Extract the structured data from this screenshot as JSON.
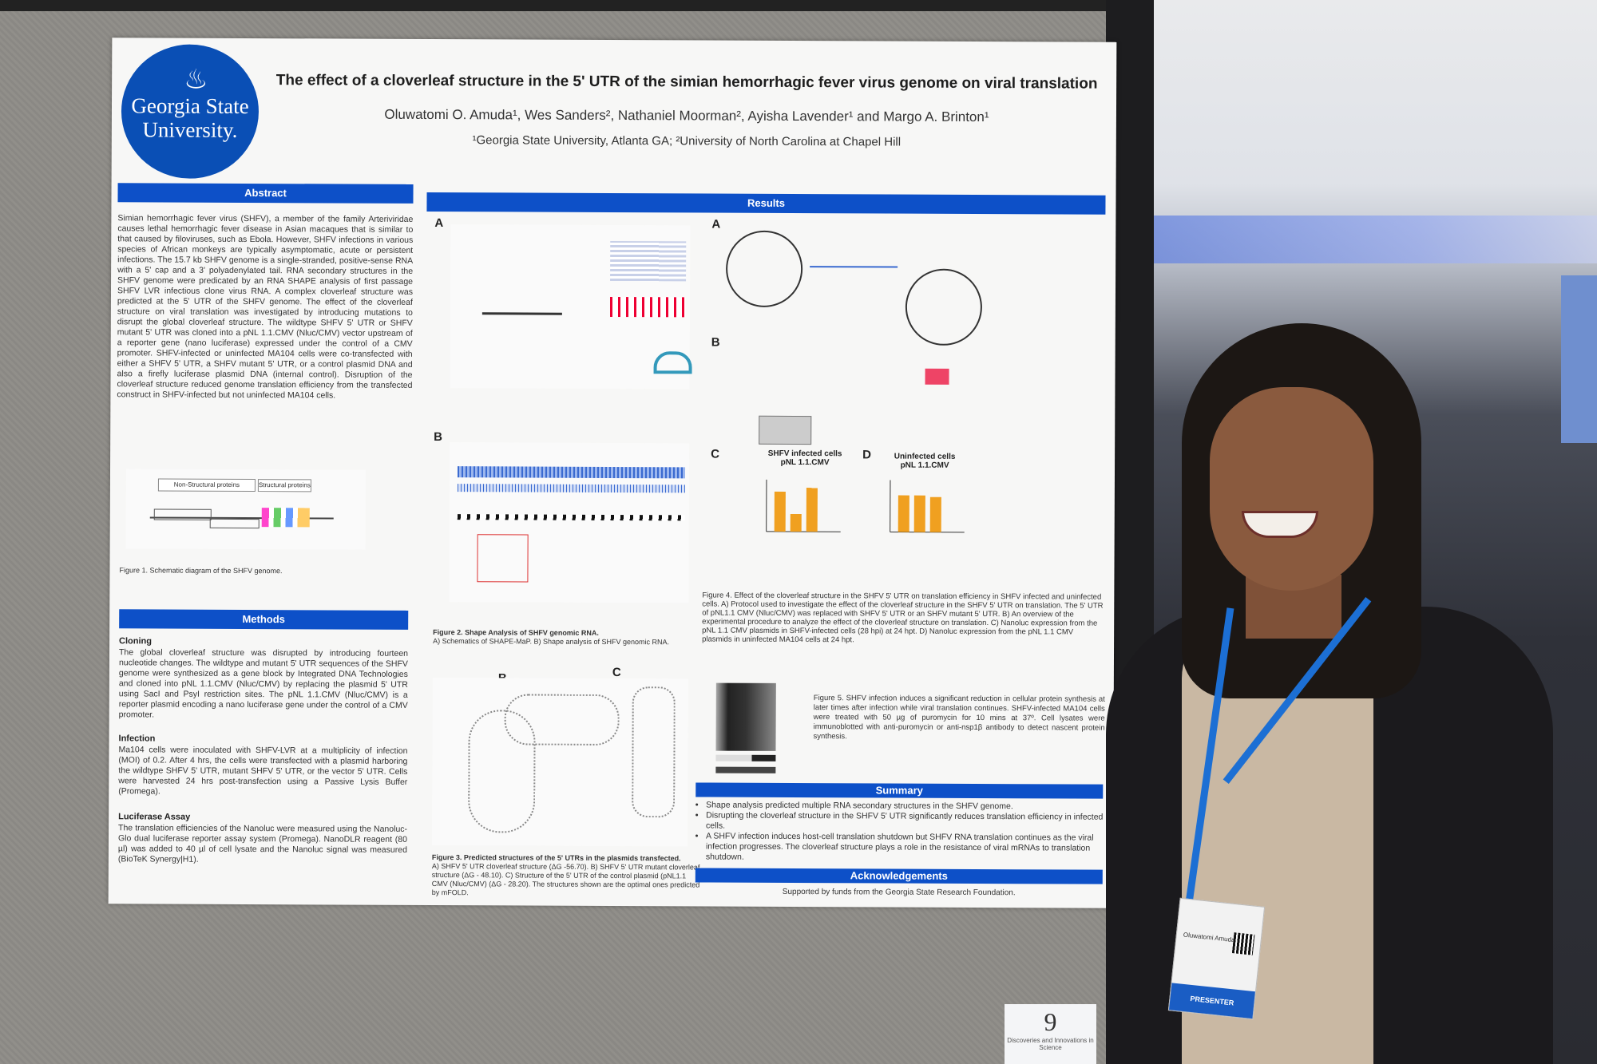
{
  "poster": {
    "logo": {
      "line1": "Georgia State",
      "line2": "University.",
      "icon": "flame-icon"
    },
    "title": "The effect of a cloverleaf structure in the 5' UTR of the simian hemorrhagic fever virus genome on viral translation",
    "authors": "Oluwatomi O. Amuda¹, Wes Sanders², Nathaniel Moorman², Ayisha Lavender¹ and Margo A. Brinton¹",
    "affiliations": "¹Georgia State University, Atlanta GA; ²University of North Carolina at Chapel Hill",
    "abstract": {
      "heading": "Abstract",
      "text": "Simian hemorrhagic fever virus (SHFV), a member of the family Arteriviridae causes lethal hemorrhagic fever disease in Asian macaques that is similar to that caused by filoviruses, such as Ebola. However, SHFV infections in various species of African monkeys are typically asymptomatic, acute or persistent infections. The 15.7 kb SHFV genome is a single-stranded, positive-sense RNA with a 5' cap and a 3' polyadenylated tail. RNA secondary structures in the SHFV genome were predicated by an RNA SHAPE analysis of first passage SHFV LVR infectious clone virus RNA. A complex cloverleaf structure was predicted at the 5' UTR of the SHFV genome. The effect of the cloverleaf structure on viral translation was investigated by introducing mutations to disrupt the global cloverleaf structure. The wildtype SHFV 5' UTR or SHFV mutant 5' UTR was cloned into a pNL 1.1.CMV (Nluc/CMV) vector upstream of a reporter gene (nano luciferase) expressed under the control of a CMV promoter. SHFV-infected or uninfected MA104 cells were co-transfected with either a SHFV 5' UTR, a SHFV mutant 5' UTR, or a control plasmid DNA and also a firefly luciferase plasmid DNA (internal control). Disruption of the cloverleaf structure reduced genome translation efficiency from the transfected construct in SHFV-infected but not uninfected MA104 cells."
    },
    "figure1": {
      "nonstructural": "Non-Structural proteins",
      "structural": "Structural proteins",
      "caption": "Figure 1. Schematic diagram of the SHFV genome."
    },
    "methods": {
      "heading": "Methods",
      "cloning_title": "Cloning",
      "cloning_text": "The global cloverleaf structure was disrupted by introducing fourteen nucleotide changes. The wildtype and mutant 5' UTR sequences of the SHFV genome were synthesized as a gene block by Integrated DNA Technologies and cloned into pNL 1.1.CMV (Nluc/CMV) by replacing the plasmid 5' UTR using SacI and PsyI restriction sites. The pNL 1.1.CMV (Nluc/CMV) is a reporter plasmid encoding a nano luciferase gene under the control of a CMV promoter.",
      "infection_title": "Infection",
      "infection_text": "Ma104 cells were inoculated with SHFV-LVR at a multiplicity of infection (MOI) of 0.2. After 4 hrs, the cells were transfected with a plasmid harboring the wildtype SHFV 5' UTR, mutant SHFV 5' UTR, or the vector 5' UTR. Cells were harvested 24 hrs post-transfection using a Passive Lysis Buffer (Promega).",
      "luciferase_title": "Luciferase Assay",
      "luciferase_text": "The translation efficiencies of the Nanoluc were measured using the Nanoluc-Glo dual luciferase reporter assay system (Promega). NanoDLR reagent (80 µl) was added to 40 µl of cell lysate and the Nanoluc signal was measured (BioTeK Synergy|H1)."
    },
    "results": {
      "heading": "Results",
      "figure2_caption_title": "Figure 2. Shape Analysis of SHFV genomic RNA.",
      "figure2_caption": "A) Schematics of SHAPE-MaP. B) Shape analysis of SHFV genomic RNA.",
      "figure3_caption_title": "Figure 3. Predicted structures of the 5' UTRs in the plasmids transfected.",
      "figure3_caption": "A) SHFV 5' UTR cloverleaf structure (ΔG -56.70). B) SHFV 5' UTR mutant cloverleaf structure (ΔG - 48.10). C) Structure of the 5' UTR of the control plasmid (pNL1.1 CMV (Nluc/CMV) (ΔG - 28.20). The structures shown are the optimal ones predicted by mFOLD.",
      "fig4_chart_c_title": "SHFV infected cells\npNL 1.1.CMV",
      "fig4_chart_d_title": "Uninfected cells\npNL 1.1.CMV",
      "figure4_caption": "Figure 4. Effect of the cloverleaf structure in the SHFV 5' UTR on translation efficiency in SHFV infected and uninfected cells. A) Protocol used to investigate the effect of the cloverleaf structure in the SHFV 5' UTR on translation. The 5' UTR of pNL1.1 CMV (Nluc/CMV) was replaced with SHFV 5' UTR or an SHFV mutant 5' UTR. B) An overview of the experimental procedure to analyze the effect of the cloverleaf structure on translation. C) Nanoluc expression from the pNL 1.1 CMV plasmids in SHFV-infected cells (28 hpi) at 24 hpt. D) Nanoluc expression from the pNL 1.1 CMV plasmids in uninfected MA104 cells at 24 hpt.",
      "figure5_caption": "Figure 5. SHFV infection induces a significant reduction in cellular protein synthesis at later times after infection while viral translation continues. SHFV-infected MA104 cells were treated with 50 µg of puromycin for 10 mins at 37º. Cell lysates were immunoblotted with anti-puromycin or anti-nsp1β antibody to detect nascent protein synthesis.",
      "labels": {
        "A": "A",
        "B": "B",
        "C": "C",
        "D": "D"
      }
    },
    "summary": {
      "heading": "Summary",
      "items": [
        "Shape analysis predicted multiple RNA secondary structures in the SHFV genome.",
        "Disrupting the cloverleaf structure in the SHFV 5' UTR significantly reduces translation efficiency in infected cells.",
        "A SHFV infection induces host-cell translation shutdown but SHFV RNA translation continues as the viral infection progresses. The cloverleaf structure plays a role in the resistance of viral mRNAs to translation shutdown."
      ]
    },
    "acknowledgements": {
      "heading": "Acknowledgements",
      "text": "Supported by funds from the Georgia State Research Foundation."
    }
  },
  "badge": {
    "name": "Oluwatomi Amuda",
    "role": "PRESENTER"
  },
  "board_number": {
    "number": "9",
    "caption": "Discoveries and Innovations in Science"
  },
  "colors": {
    "header_blue": "#0d50c8",
    "logo_blue": "#0a4fb5",
    "bar_orange": "#f0a020"
  }
}
